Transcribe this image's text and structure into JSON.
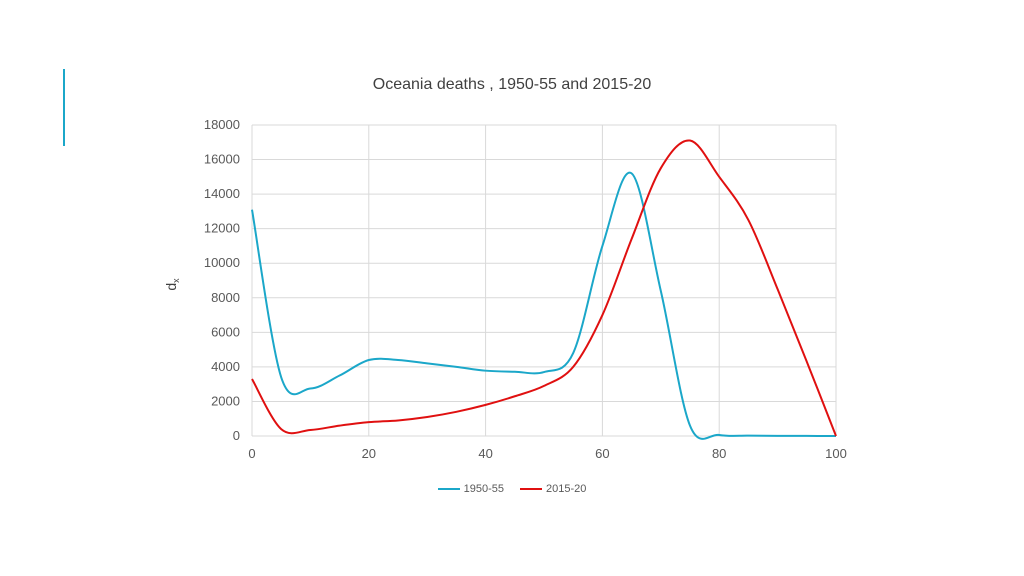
{
  "chart_data": {
    "type": "line",
    "title": "Oceania deaths , 1950-55 and 2015-20",
    "xlabel": "",
    "ylabel": "d",
    "ylabel_subscript": "x",
    "xlim": [
      0,
      100
    ],
    "ylim": [
      0,
      18000
    ],
    "xticks": [
      0,
      20,
      40,
      60,
      80,
      100
    ],
    "yticks": [
      0,
      2000,
      4000,
      6000,
      8000,
      10000,
      12000,
      14000,
      16000,
      18000
    ],
    "xtick_labels": [
      "0",
      "20",
      "40",
      "60",
      "80",
      "100"
    ],
    "ytick_labels": [
      "0",
      "2000",
      "4000",
      "6000",
      "8000",
      "10000",
      "12000",
      "14000",
      "16000",
      "18000"
    ],
    "grid": true,
    "legend_position": "bottom",
    "series": [
      {
        "name": "1950-55",
        "color": "#1ba7c9",
        "x": [
          0,
          5,
          10,
          15,
          20,
          25,
          30,
          35,
          40,
          45,
          50,
          55,
          60,
          65,
          70,
          75,
          80,
          85,
          90,
          95,
          100
        ],
        "y": [
          13100,
          3400,
          2750,
          3500,
          4400,
          4400,
          4200,
          4000,
          3780,
          3720,
          3700,
          4800,
          11000,
          15200,
          8400,
          600,
          60,
          20,
          10,
          5,
          0
        ]
      },
      {
        "name": "2015-20",
        "color": "#e01010",
        "x": [
          0,
          5,
          10,
          15,
          20,
          25,
          30,
          35,
          40,
          45,
          50,
          55,
          60,
          65,
          70,
          75,
          80,
          85,
          90,
          95,
          100
        ],
        "y": [
          3300,
          400,
          350,
          600,
          800,
          900,
          1100,
          1400,
          1800,
          2300,
          2900,
          4000,
          7000,
          11400,
          15500,
          17100,
          15000,
          12500,
          8500,
          4300,
          0
        ]
      }
    ]
  }
}
